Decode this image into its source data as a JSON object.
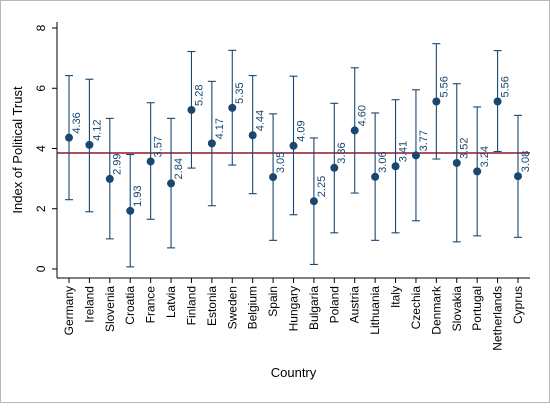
{
  "chart_data": {
    "type": "scatter",
    "xlabel": "Country",
    "ylabel": "Index of Political Trust",
    "ylim": [
      -0.3,
      8.2
    ],
    "yticks": [
      0,
      2,
      4,
      6,
      8
    ],
    "grid": false,
    "reference_line": 3.85,
    "categories": [
      "Germany",
      "Ireland",
      "Slovenia",
      "Croatia",
      "France",
      "Latvia",
      "Finland",
      "Estonia",
      "Sweden",
      "Belgium",
      "Spain",
      "Hungary",
      "Bulgaria",
      "Poland",
      "Austria",
      "Lithuania",
      "Italy",
      "Czechia",
      "Denmark",
      "Slovakia",
      "Portugal",
      "Netherlands",
      "Cyprus"
    ],
    "values": [
      4.36,
      4.12,
      2.99,
      1.93,
      3.57,
      2.84,
      5.28,
      4.17,
      5.35,
      4.44,
      3.05,
      4.09,
      2.25,
      3.36,
      4.6,
      3.06,
      3.41,
      3.77,
      5.56,
      3.52,
      3.24,
      5.56,
      3.08
    ],
    "value_labels": [
      "4.36",
      "4.12",
      "2.99",
      "1.93",
      "3.57",
      "2.84",
      "5.28",
      "4.17",
      "5.35",
      "4.44",
      "3.05",
      "4.09",
      "2.25",
      "3.36",
      "4.60",
      "3.06",
      "3.41",
      "3.77",
      "5.56",
      "3.52",
      "3.24",
      "5.56",
      "3.08"
    ],
    "lower": [
      2.3,
      1.9,
      1.0,
      0.07,
      1.65,
      0.7,
      3.35,
      2.1,
      3.45,
      2.5,
      0.95,
      1.8,
      0.15,
      1.2,
      2.52,
      0.95,
      1.2,
      1.6,
      3.65,
      0.9,
      1.1,
      3.9,
      1.05
    ],
    "upper": [
      6.42,
      6.3,
      5.0,
      3.8,
      5.52,
      5.0,
      7.22,
      6.23,
      7.26,
      6.42,
      5.15,
      6.4,
      4.35,
      5.5,
      6.68,
      5.18,
      5.62,
      5.95,
      7.48,
      6.15,
      5.38,
      7.25,
      5.1
    ],
    "colors": {
      "marker": "#1a476f",
      "error_bar": "#1a476f",
      "reference_line": "#8b1a2b",
      "axis": "#000000"
    }
  }
}
